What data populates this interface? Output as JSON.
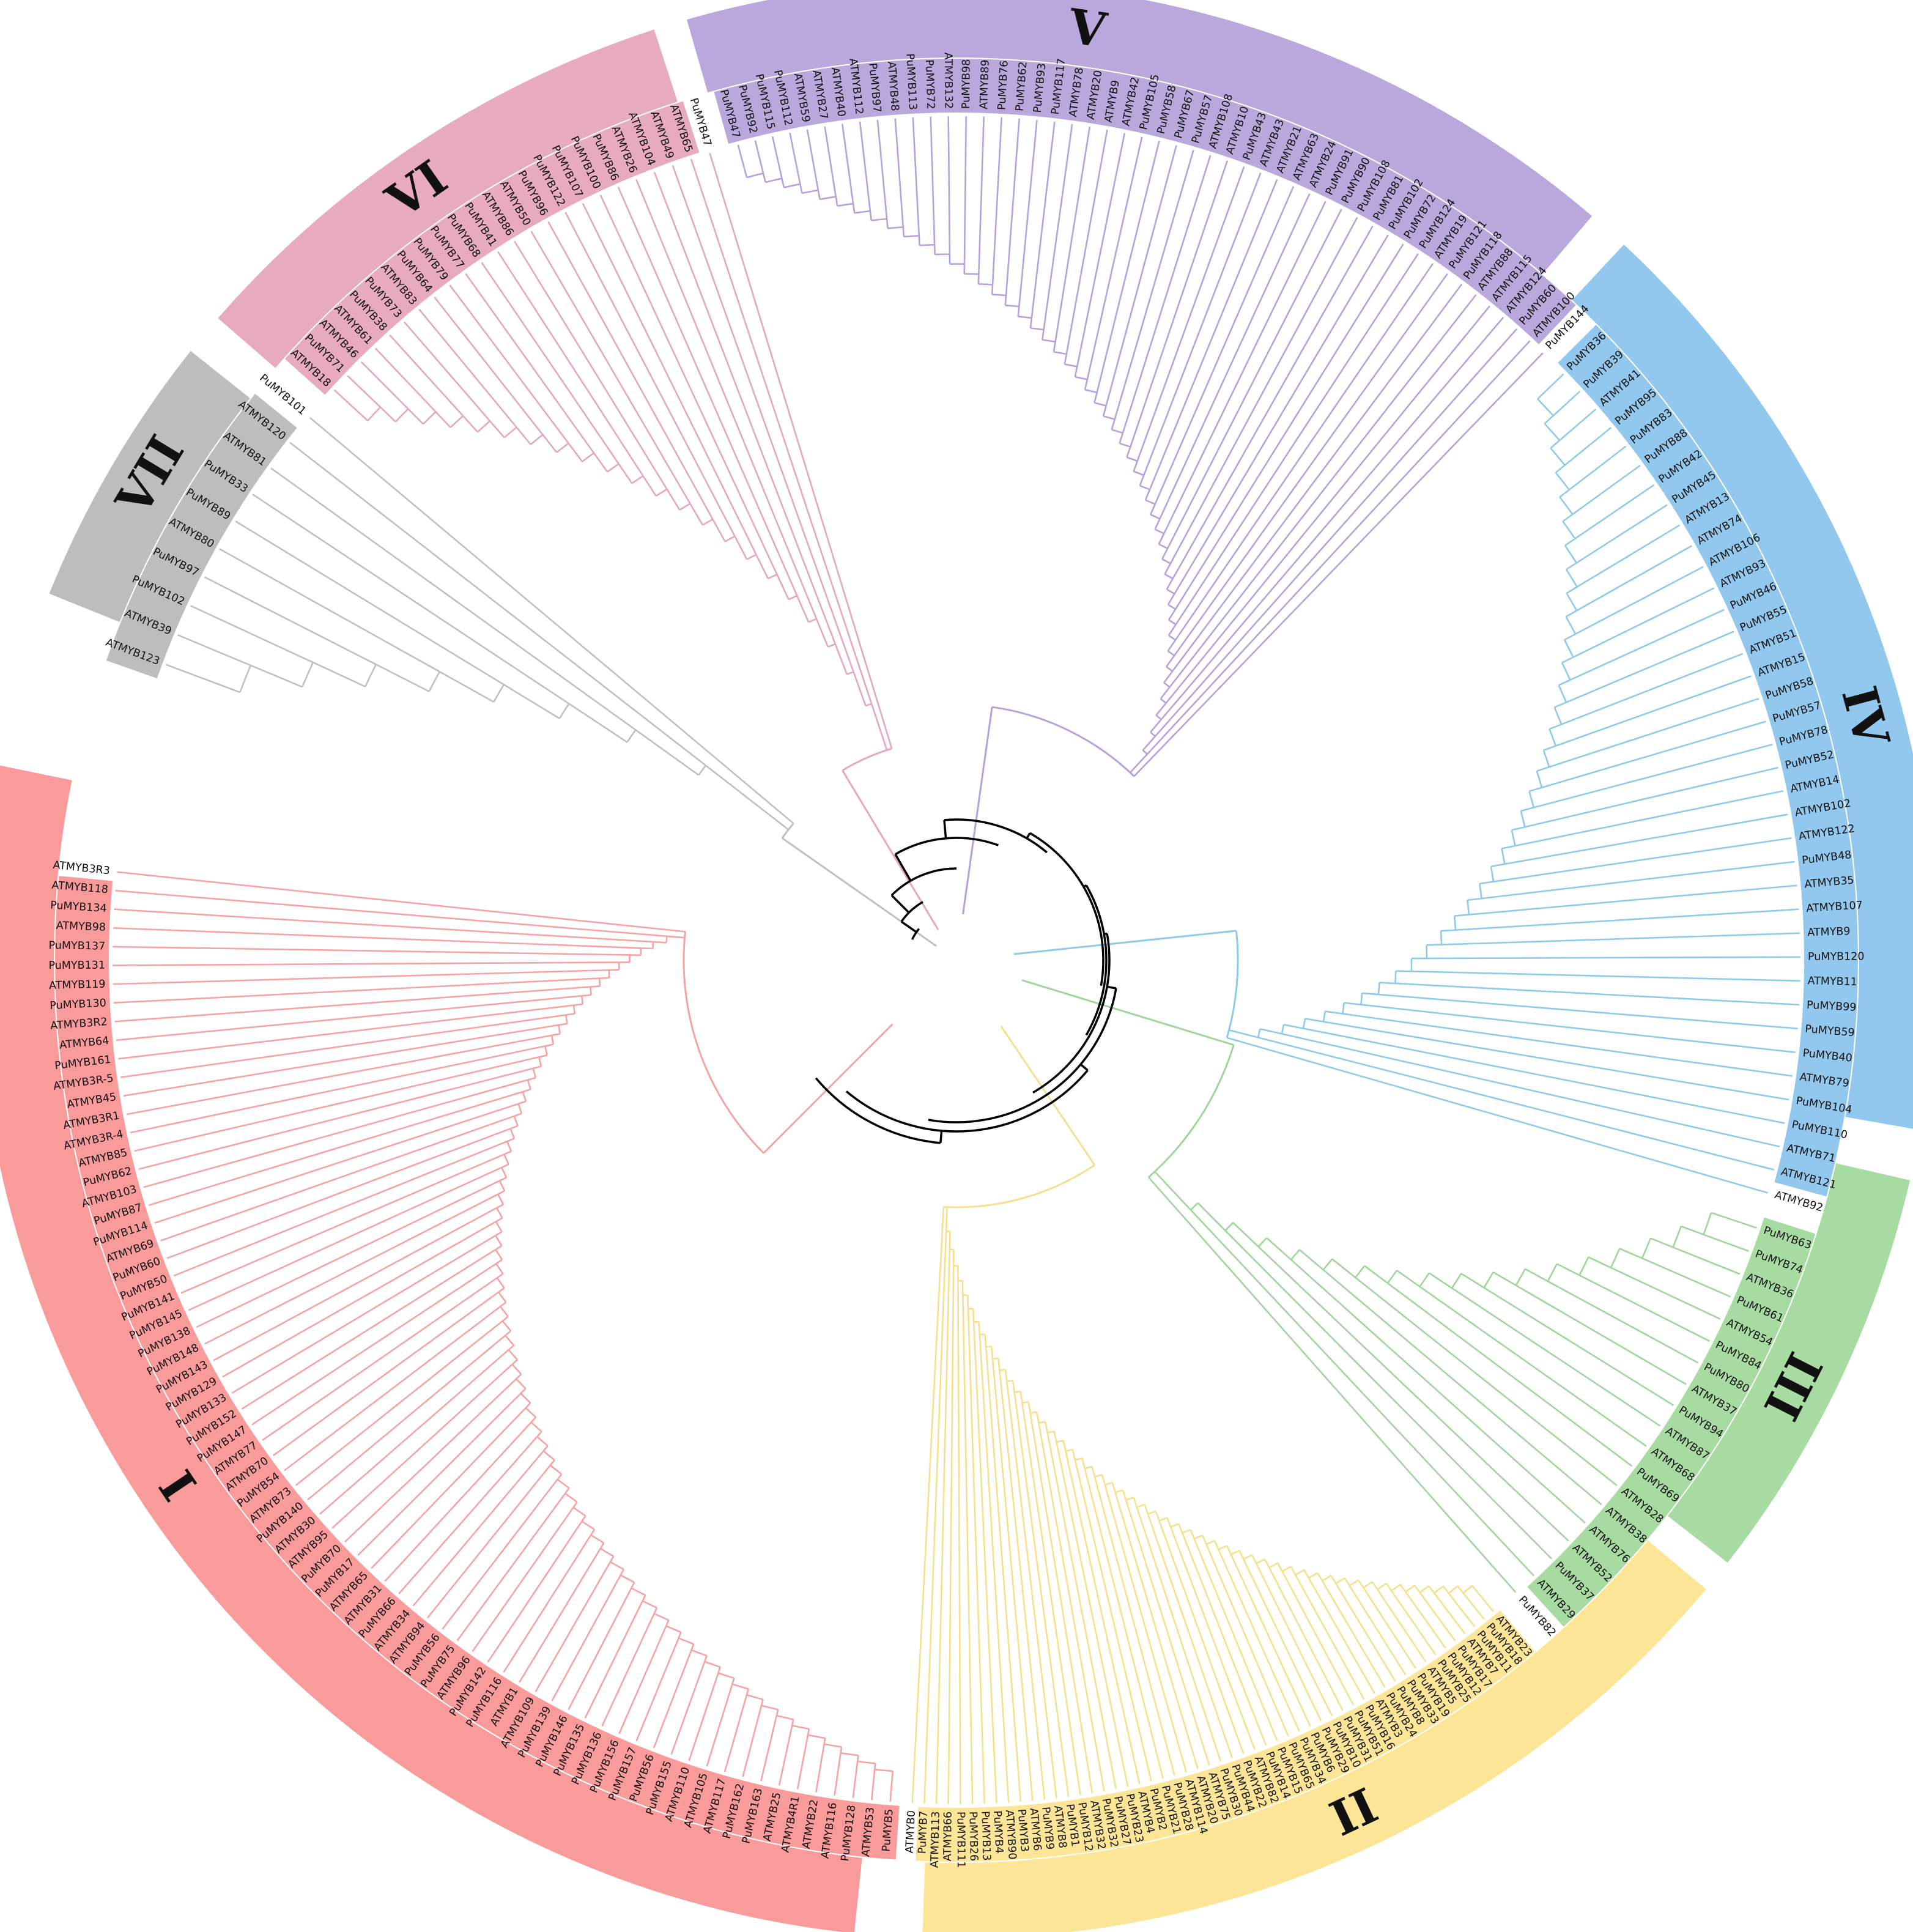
{
  "tree": {
    "root_color": "#000000",
    "clades": [
      {
        "id": "I",
        "label": "I",
        "color": "#f99b9b",
        "branch_color": "#f5a3a3",
        "leaves": [
          "ATMYB3R3",
          "ATMYB118",
          "PuMYB134",
          "ATMYB98",
          "PuMYB137",
          "PuMYB131",
          "ATMYB119",
          "PuMYB130",
          "ATMYB3R2",
          "ATMYB64",
          "PuMYB161",
          "ATMYB3R-5",
          "ATMYB45",
          "ATMYB3R1",
          "ATMYB3R-4",
          "ATMYB85",
          "PuMYB62",
          "ATMYB103",
          "PuMYB87",
          "PuMYB114",
          "ATMYB69",
          "PuMYB60",
          "PuMYB50",
          "PuMYB141",
          "PuMYB145",
          "PuMYB138",
          "PuMYB148",
          "PuMYB143",
          "PuMYB129",
          "PuMYB133",
          "PuMYB152",
          "PuMYB147",
          "ATMYB77",
          "ATMYB70",
          "PuMYB54",
          "ATMYB73",
          "PuMYB140",
          "ATMYB30",
          "ATMYB95",
          "PuMYB70",
          "PuMYB17",
          "ATMYB65",
          "ATMYB31",
          "PuMYB66",
          "ATMYB34",
          "ATMYB94",
          "PuMYB56",
          "PuMYB75",
          "ATMYB96",
          "PuMYB142",
          "PuMYB116",
          "ATMYB1",
          "ATMYB109",
          "PuMYB139",
          "PuMYB146",
          "PuMYB135",
          "PuMYB136",
          "PuMYB156",
          "PuMYB157",
          "PuMYB56",
          "PuMYB155",
          "ATMYB110",
          "ATMYB105",
          "ATMYB117",
          "PuMYB162",
          "PuMYB163",
          "ATMYB25",
          "ATMYB4R1",
          "ATMYB22",
          "ATMYB116",
          "PuMYB128",
          "ATMYB53",
          "PuMYB5"
        ]
      },
      {
        "id": "II",
        "label": "II",
        "color": "#fde597",
        "branch_color": "#f6e08d",
        "leaves": [
          "ATMYB0",
          "PuMYB7",
          "ATMYB113",
          "ATMYB66",
          "PuMYB111",
          "PuMYB26",
          "PuMYB13",
          "PuMYB4",
          "ATMYB90",
          "PuMYB3",
          "ATMYB6",
          "PuMYB9",
          "ATMYB8",
          "PuMYB1",
          "PuMYB12",
          "ATMYB32",
          "PuMYB32",
          "PuMYB27",
          "PuMYB23",
          "ATMYB4",
          "PuMYB2",
          "PuMYB21",
          "PuMYB28",
          "ATMYB114",
          "ATMYB20",
          "ATMYB75",
          "PuMYB30",
          "PuMYB44",
          "PuMYB22",
          "ATMYB82",
          "PuMYB14",
          "PuMYB15",
          "PuMYB65",
          "PuMYB34",
          "PuMYB6",
          "PuMYB29",
          "PuMYB10",
          "PuMYB31",
          "PuMYB51",
          "PuMYB16",
          "ATMYB3",
          "PuMYB24",
          "PuMYB8",
          "PuMYB33",
          "PuMYB19",
          "ATMYB5",
          "PuMYB25",
          "PuMYB12",
          "PuMYB17",
          "ATMYB7",
          "PuMYB11",
          "PuMYB18",
          "ATMYB23"
        ]
      },
      {
        "id": "III",
        "label": "III",
        "color": "#a8dba1",
        "branch_color": "#9fd69a",
        "leaves": [
          "PuMYB82",
          "ATMYB29",
          "PuMYB37",
          "ATMYB52",
          "ATMYB76",
          "ATMYB38",
          "ATMYB28",
          "PuMYB69",
          "ATMYB68",
          "ATMYB87",
          "PuMYB94",
          "ATMYB37",
          "PuMYB80",
          "PuMYB84",
          "ATMYB54",
          "PuMYB61",
          "ATMYB36",
          "PuMYB74",
          "PuMYB63"
        ]
      },
      {
        "id": "IV",
        "label": "IV",
        "color": "#92c8ed",
        "branch_color": "#8ecaeb",
        "leaves": [
          "ATMYB92",
          "ATMYB121",
          "ATMYB71",
          "PuMYB110",
          "PuMYB104",
          "ATMYB79",
          "PuMYB40",
          "PuMYB59",
          "PuMYB99",
          "ATMYB11",
          "PuMYB120",
          "ATMYB9",
          "ATMYB107",
          "ATMYB35",
          "PuMYB48",
          "ATMYB122",
          "ATMYB102",
          "ATMYB14",
          "PuMYB52",
          "PuMYB78",
          "PuMYB57",
          "PuMYB58",
          "ATMYB15",
          "ATMYB51",
          "PuMYB55",
          "PuMYB46",
          "ATMYB93",
          "ATMYB106",
          "ATMYB74",
          "ATMYB13",
          "PuMYB45",
          "PuMYB42",
          "PuMYB88",
          "PuMYB83",
          "PuMYB95",
          "ATMYB41",
          "PuMYB39",
          "PuMYB36"
        ]
      },
      {
        "id": "V",
        "label": "V",
        "color": "#baa8dc",
        "branch_color": "#b5a2dc",
        "leaves": [
          "PuMYB144",
          "ATMYB100",
          "PuMYB60",
          "ATMYB124",
          "ATMYB115",
          "ATMYB88",
          "PuMYB118",
          "PuMYB121",
          "ATMYB19",
          "PuMYB124",
          "PuMYB72",
          "PuMYB102",
          "PuMYB81",
          "PuMYB108",
          "PuMYB90",
          "PuMYB91",
          "ATMYB24",
          "ATMYB63",
          "ATMYB21",
          "ATMYB43",
          "PuMYB43",
          "ATMYB10",
          "ATMYB108",
          "PuMYB57",
          "PuMYB67",
          "PuMYB58",
          "PuMYB105",
          "ATMYB42",
          "ATMYB9",
          "ATMYB20",
          "ATMYB78",
          "PuMYB117",
          "PuMYB93",
          "PuMYB62",
          "PuMYB76",
          "ATMYB89",
          "PuMYB98",
          "ATMYB132",
          "PuMYB72",
          "PuMYB113",
          "ATMYB48",
          "PuMYB97",
          "ATMYB112",
          "ATMYB40",
          "ATMYB27",
          "ATMYB59",
          "PuMYB112",
          "PuMYB115",
          "PuMYB92",
          "PuMYB47"
        ]
      },
      {
        "id": "VI",
        "label": "VI",
        "color": "#e8aabf",
        "branch_color": "#e6a6c1",
        "leaves": [
          "PuMYB47",
          "ATMYB65",
          "ATMYB49",
          "ATMYB104",
          "ATMYB26",
          "PuMYB86",
          "PuMYB100",
          "PuMYB107",
          "PuMYB122",
          "PuMYB96",
          "ATMYB50",
          "ATMYB86",
          "PuMYB41",
          "PuMYB68",
          "PuMYB77",
          "PuMYB79",
          "PuMYB64",
          "ATMYB83",
          "PuMYB73",
          "PuMYB38",
          "ATMYB61",
          "ATMYB46",
          "PuMYB71",
          "ATMYB18"
        ]
      },
      {
        "id": "VII",
        "label": "VII",
        "color": "#bdbdbd",
        "branch_color": "#c0c0c0",
        "leaves": [
          "PuMYB101",
          "ATMYB120",
          "ATMYB81",
          "PuMYB33",
          "PuMYB89",
          "ATMYB80",
          "PuMYB97",
          "PuMYB102",
          "ATMYB39",
          "ATMYB123"
        ]
      }
    ]
  }
}
